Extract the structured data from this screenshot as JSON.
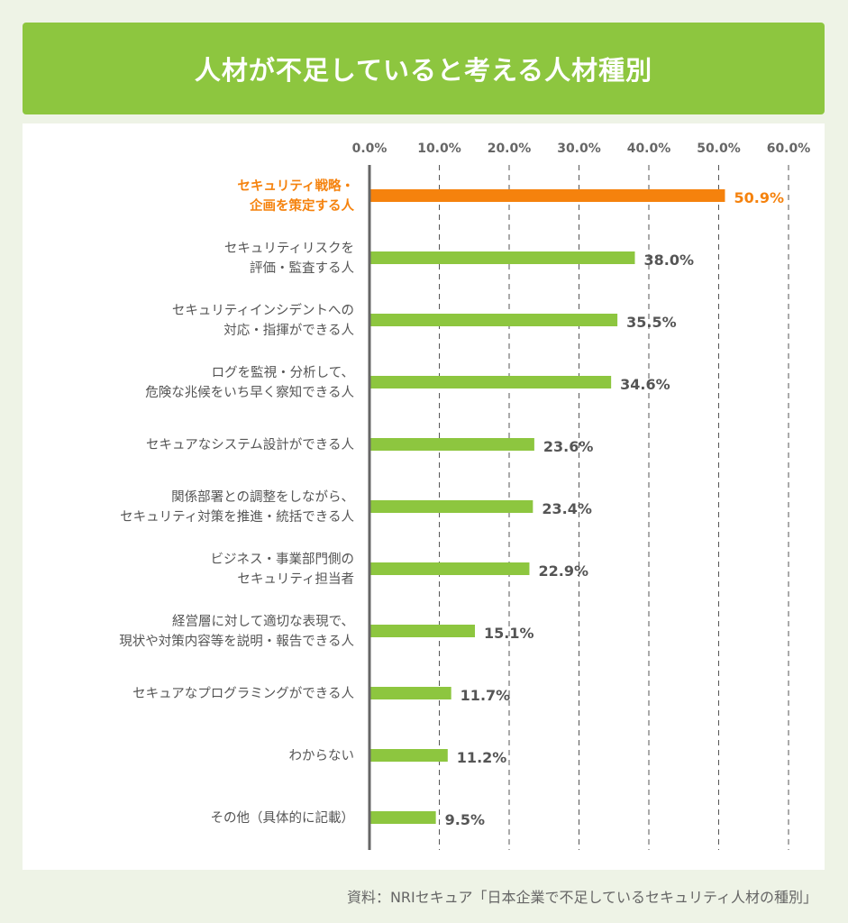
{
  "page": {
    "title": "人材が不足していると考える人材種別",
    "source": "資料：NRIセキュア「日本企業で不足しているセキュリティ人材の種別」"
  },
  "colors": {
    "header_bg": "#8dc63f",
    "bar": "#8dc63f",
    "highlight": "#f5820d",
    "axis": "#666666",
    "text": "#555555",
    "page_bg": "#eef3e6"
  },
  "chart_data": {
    "type": "bar",
    "orientation": "horizontal",
    "title": "",
    "xlabel": "",
    "ylabel": "",
    "xlim": [
      0,
      60
    ],
    "ticks": [
      "0.0%",
      "10.0%",
      "20.0%",
      "30.0%",
      "40.0%",
      "50.0%",
      "60.0%"
    ],
    "tick_values": [
      0,
      10,
      20,
      30,
      40,
      50,
      60
    ],
    "grid": "vertical dashed",
    "axis_position": "top",
    "categories": [
      [
        "セキュリティ戦略・",
        "企画を策定する人"
      ],
      [
        "セキュリティリスクを",
        "評価・監査する人"
      ],
      [
        "セキュリティインシデントへの",
        "対応・指揮ができる人"
      ],
      [
        "ログを監視・分析して、",
        "危険な兆候をいち早く察知できる人"
      ],
      [
        "セキュアなシステム設計ができる人"
      ],
      [
        "関係部署との調整をしながら、",
        "セキュリティ対策を推進・統括できる人"
      ],
      [
        "ビジネス・事業部門側の",
        "セキュリティ担当者"
      ],
      [
        "経営層に対して適切な表現で、",
        "現状や対策内容等を説明・報告できる人"
      ],
      [
        "セキュアなプログラミングができる人"
      ],
      [
        "わからない"
      ],
      [
        "その他（具体的に記載）"
      ]
    ],
    "values": [
      50.9,
      38.0,
      35.5,
      34.6,
      23.6,
      23.4,
      22.9,
      15.1,
      11.7,
      11.2,
      9.5
    ],
    "value_labels": [
      "50.9%",
      "38.0%",
      "35.5%",
      "34.6%",
      "23.6%",
      "23.4%",
      "22.9%",
      "15.1%",
      "11.7%",
      "11.2%",
      "9.5%"
    ],
    "highlight_index": 0
  }
}
